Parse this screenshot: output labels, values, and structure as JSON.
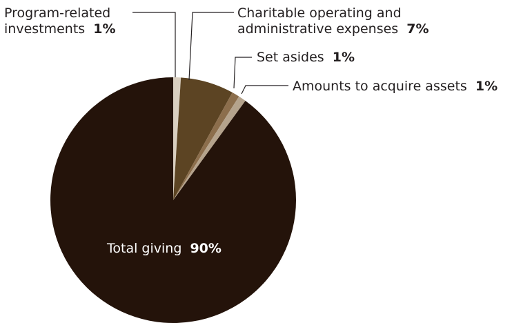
{
  "chart_data": {
    "type": "pie",
    "title": "",
    "start_angle_deg": 0,
    "direction": "clockwise",
    "slices": [
      {
        "label": "Program-related investments",
        "value": 1,
        "value_label": "1%",
        "color": "#d9cfc0"
      },
      {
        "label": "Charitable operating and administrative expenses",
        "value": 7,
        "value_label": "7%",
        "color": "#5c4423"
      },
      {
        "label": "Set asides",
        "value": 1,
        "value_label": "1%",
        "color": "#8c6e4c"
      },
      {
        "label": "Amounts to acquire assets",
        "value": 1,
        "value_label": "1%",
        "color": "#b5a38c"
      },
      {
        "label": "Total giving",
        "value": 90,
        "value_label": "90%",
        "color": "#24130a"
      }
    ]
  },
  "labels": {
    "program_line1": "Program-related",
    "program_line2": "investments",
    "program_pct": "1%",
    "charitable_line1": "Charitable operating and",
    "charitable_line2": "administrative expenses",
    "charitable_pct": "7%",
    "setasides": "Set asides",
    "setasides_pct": "1%",
    "acquire": "Amounts to acquire assets",
    "acquire_pct": "1%",
    "total": "Total giving",
    "total_pct": "90%"
  }
}
